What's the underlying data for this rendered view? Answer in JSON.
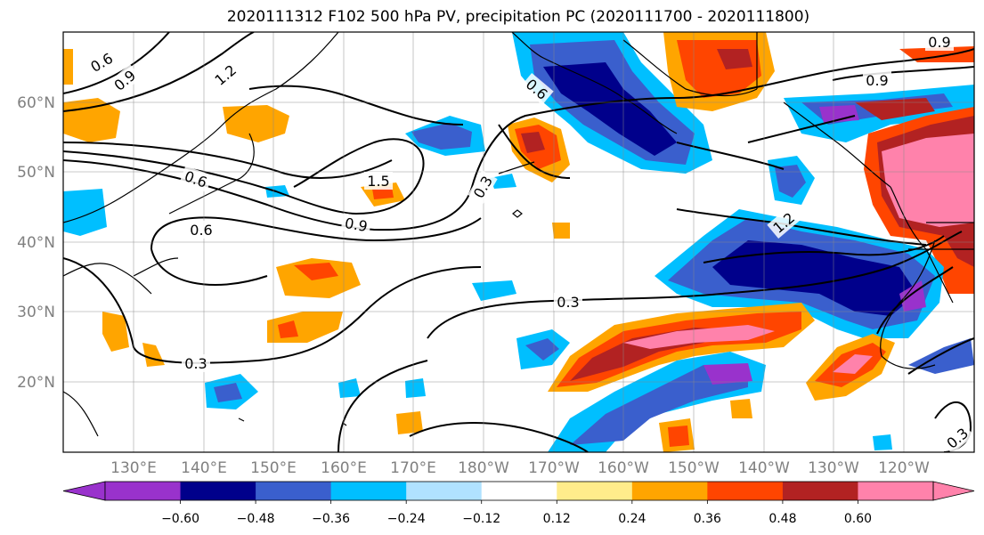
{
  "title": "2020111312 F102 500 hPa PV, precipitation PC (2020111700 - 2020111800)",
  "lat_labels": [
    "60°N",
    "50°N",
    "40°N",
    "30°N",
    "20°N"
  ],
  "lon_labels": [
    "130°E",
    "140°E",
    "150°E",
    "160°E",
    "170°E",
    "180°W",
    "170°W",
    "160°W",
    "150°W",
    "140°W",
    "130°W",
    "120°W"
  ],
  "contour_labels": [
    "0.6",
    "0.9",
    "1.2",
    "1.5",
    "0.6",
    "0.9",
    "0.3",
    "0.3",
    "0.3",
    "0.9",
    "1.2",
    "0.9",
    "0.3",
    "0.6",
    "0.6"
  ],
  "colorbar": {
    "ticks": [
      "−0.60",
      "−0.48",
      "−0.36",
      "−0.24",
      "−0.12",
      "0.12",
      "0.24",
      "0.36",
      "0.48",
      "0.60"
    ],
    "colors": [
      "#9932CC",
      "#00008B",
      "#3A5FCD",
      "#00BFFF",
      "#B0E2FF",
      "#FFFFFF",
      "#FFEC8B",
      "#FFA500",
      "#FF4500",
      "#B22222",
      "#FF82AB",
      "#FF82AB"
    ]
  }
}
